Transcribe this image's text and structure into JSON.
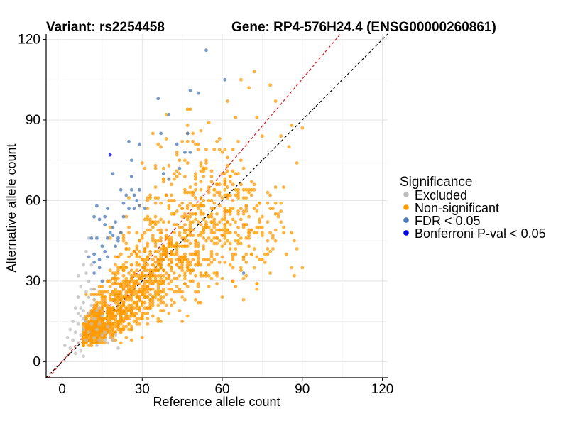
{
  "chart_data": {
    "type": "scatter",
    "title_left": "Variant: rs2254458",
    "title_right": "Gene: RP4-576H24.4 (ENSG00000260861)",
    "xlabel": "Reference allele count",
    "ylabel": "Alternative allele count",
    "xlim": [
      -6,
      122
    ],
    "ylim": [
      -6,
      122
    ],
    "x_ticks": [
      0,
      30,
      60,
      90,
      120
    ],
    "y_ticks": [
      0,
      30,
      60,
      90,
      120
    ],
    "grid": true,
    "reference_lines": [
      {
        "name": "identity",
        "slope": 1.0,
        "intercept": 0,
        "color": "#000000",
        "dash": true
      },
      {
        "name": "expected-ratio",
        "slope": 1.17,
        "intercept": 0,
        "color": "#e41a1c",
        "dash": true
      }
    ],
    "legend": {
      "title": "Significance",
      "position": "right",
      "entries": [
        {
          "label": "Excluded",
          "color": "#bebebe"
        },
        {
          "label": "Non-significant",
          "color": "#ff9900"
        },
        {
          "label": "FDR < 0.05",
          "color": "#4a7ab5"
        },
        {
          "label": "Bonferroni P-val < 0.05",
          "color": "#0000ee"
        }
      ]
    },
    "series": [
      {
        "name": "Excluded",
        "color": "#bebebe",
        "points": [
          [
            1,
            6
          ],
          [
            2,
            9
          ],
          [
            3,
            12
          ],
          [
            3,
            5
          ],
          [
            4,
            8
          ],
          [
            4,
            15
          ],
          [
            5,
            11
          ],
          [
            5,
            20
          ],
          [
            5,
            3
          ],
          [
            6,
            14
          ],
          [
            6,
            7
          ],
          [
            6,
            24
          ],
          [
            6,
            32
          ],
          [
            7,
            10
          ],
          [
            7,
            17
          ],
          [
            7,
            28
          ],
          [
            7,
            4
          ],
          [
            8,
            12
          ],
          [
            8,
            19
          ],
          [
            8,
            22
          ],
          [
            8,
            36
          ],
          [
            8,
            2
          ],
          [
            9,
            15
          ],
          [
            9,
            8
          ],
          [
            9,
            26
          ],
          [
            9,
            41
          ],
          [
            10,
            18
          ],
          [
            10,
            11
          ],
          [
            10,
            30
          ],
          [
            10,
            46
          ],
          [
            11,
            14
          ],
          [
            11,
            21
          ],
          [
            11,
            27
          ],
          [
            12,
            9
          ],
          [
            12,
            16
          ],
          [
            12,
            23
          ],
          [
            13,
            12
          ],
          [
            13,
            19
          ],
          [
            14,
            8
          ],
          [
            14,
            14
          ],
          [
            15,
            10
          ],
          [
            15,
            17
          ],
          [
            16,
            11
          ],
          [
            17,
            7
          ],
          [
            17,
            13
          ],
          [
            18,
            9
          ],
          [
            19,
            8
          ],
          [
            20,
            10
          ],
          [
            21,
            5
          ],
          [
            16,
            8
          ],
          [
            13,
            6
          ],
          [
            11,
            36
          ],
          [
            9,
            33
          ],
          [
            7,
            20
          ],
          [
            12,
            27
          ],
          [
            14,
            20
          ],
          [
            10,
            24
          ],
          [
            8,
            16
          ],
          [
            6,
            18
          ]
        ]
      },
      {
        "name": "FDR < 0.05",
        "color": "#4a7ab5",
        "points": [
          [
            54,
            116
          ],
          [
            61,
            105
          ],
          [
            36,
            98
          ],
          [
            48,
            101
          ],
          [
            51,
            100
          ],
          [
            40,
            92
          ],
          [
            37,
            85
          ],
          [
            47,
            85
          ],
          [
            43,
            81
          ],
          [
            48,
            78
          ],
          [
            19,
            70
          ],
          [
            17,
            57
          ],
          [
            22,
            64
          ],
          [
            26,
            64
          ],
          [
            29,
            64
          ],
          [
            24,
            62
          ],
          [
            27,
            62
          ],
          [
            28,
            60
          ],
          [
            23,
            59
          ],
          [
            25,
            57
          ],
          [
            27,
            57
          ],
          [
            29,
            58
          ],
          [
            31,
            57
          ],
          [
            13,
            58
          ],
          [
            12,
            54
          ],
          [
            14,
            53
          ],
          [
            16,
            54
          ],
          [
            16,
            51
          ],
          [
            11,
            46
          ],
          [
            13,
            46
          ],
          [
            15,
            43
          ],
          [
            17,
            46
          ],
          [
            19,
            50
          ],
          [
            19,
            47
          ],
          [
            21,
            45
          ],
          [
            16,
            41
          ],
          [
            14,
            38
          ],
          [
            14,
            35
          ],
          [
            12,
            33
          ],
          [
            12,
            37
          ],
          [
            10,
            39
          ],
          [
            17,
            39
          ],
          [
            20,
            52
          ],
          [
            23,
            54
          ],
          [
            26,
            69
          ],
          [
            26,
            75
          ],
          [
            25,
            82
          ],
          [
            29,
            81
          ],
          [
            46,
            78
          ],
          [
            68,
            33
          ],
          [
            22,
            48
          ],
          [
            21,
            46
          ],
          [
            12,
            40
          ],
          [
            15,
            30
          ],
          [
            18,
            48
          ],
          [
            20,
            43
          ],
          [
            44,
            72
          ],
          [
            40,
            68
          ],
          [
            38,
            70
          ]
        ]
      },
      {
        "name": "Bonferroni P-val < 0.05",
        "color": "#0000ee",
        "points": [
          [
            18,
            77
          ]
        ]
      }
    ]
  }
}
